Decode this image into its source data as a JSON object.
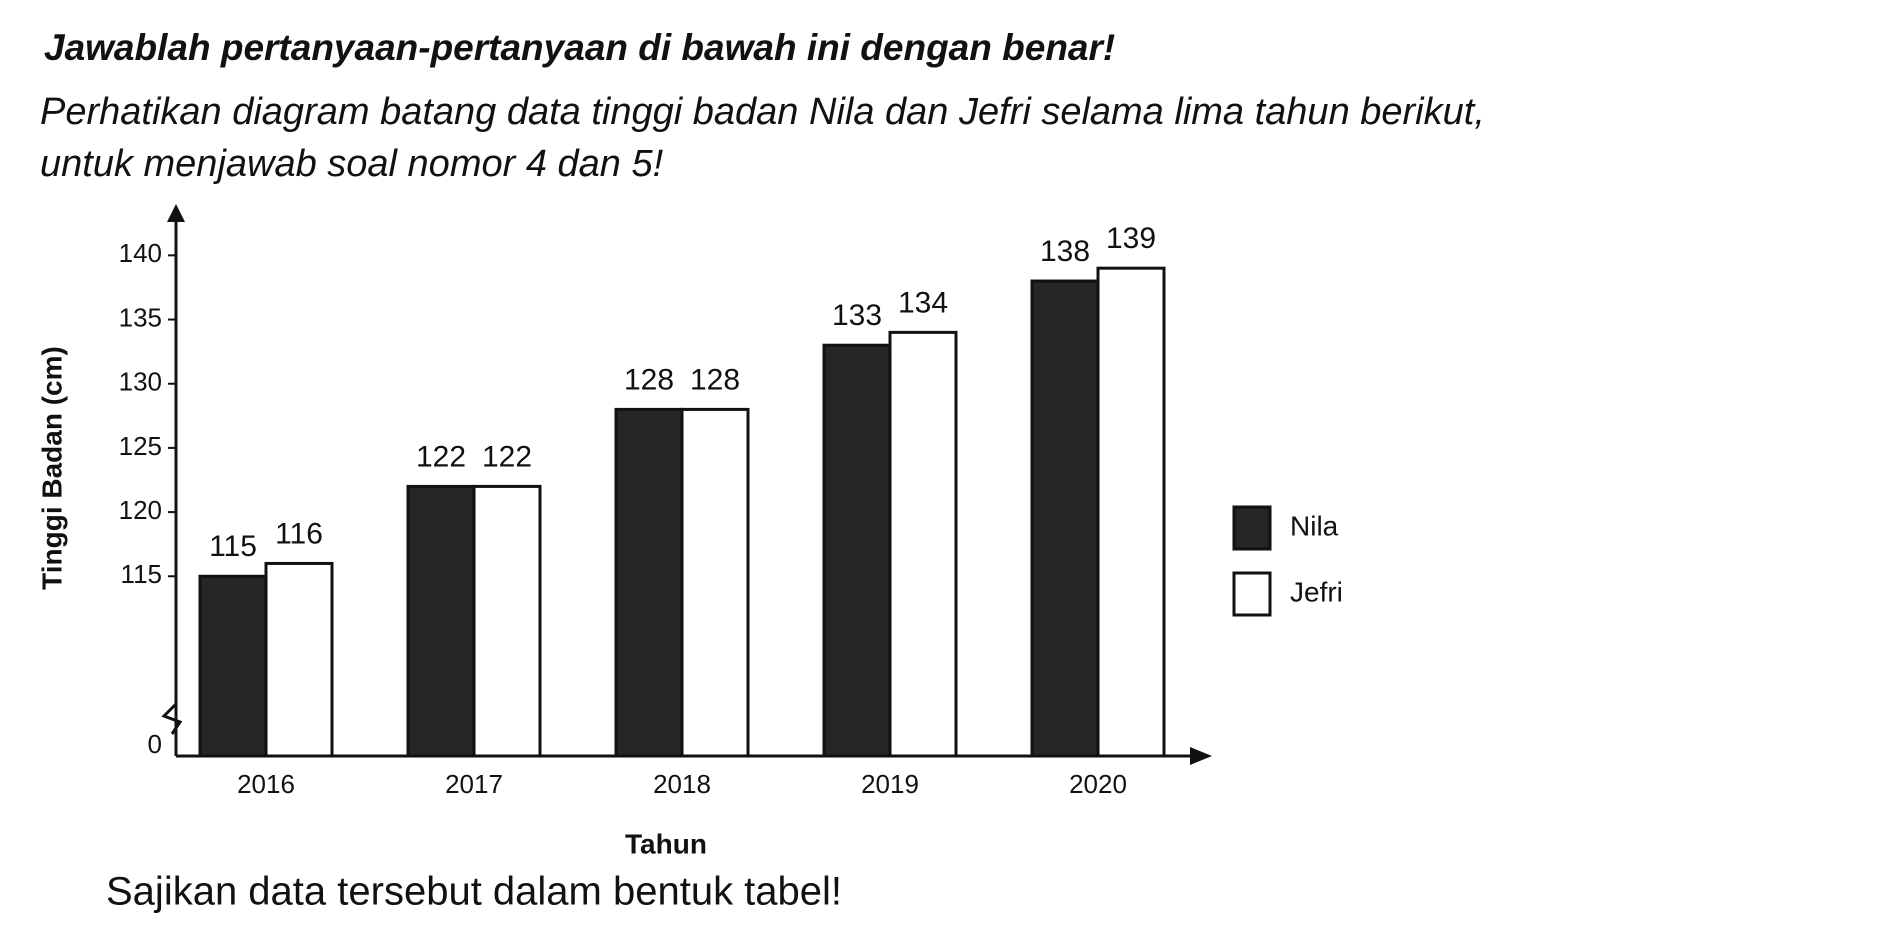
{
  "instruction": "Jawablah pertanyaan-pertanyaan di bawah ini dengan benar!",
  "intro": [
    "Perhatikan diagram batang data tinggi badan Nila dan Jefri selama lima tahun berikut,",
    "untuk menjawab soal nomor 4 dan 5!"
  ],
  "question": "Sajikan data tersebut dalam bentuk tabel!",
  "chart_data": {
    "type": "bar",
    "x_label": "Tahun",
    "y_label": "Tinggi Badan (cm)",
    "categories": [
      "2016",
      "2017",
      "2018",
      "2019",
      "2020"
    ],
    "series": [
      {
        "name": "Nila",
        "color": "#262626",
        "values": [
          115,
          122,
          128,
          133,
          138
        ]
      },
      {
        "name": "Jefri",
        "color": "#ffffff",
        "values": [
          116,
          122,
          128,
          134,
          139
        ]
      }
    ],
    "ylim": [
      101,
      144
    ],
    "yticks": [
      0,
      115,
      120,
      125,
      130,
      135,
      140
    ],
    "axis_break": true,
    "legend": "right"
  }
}
